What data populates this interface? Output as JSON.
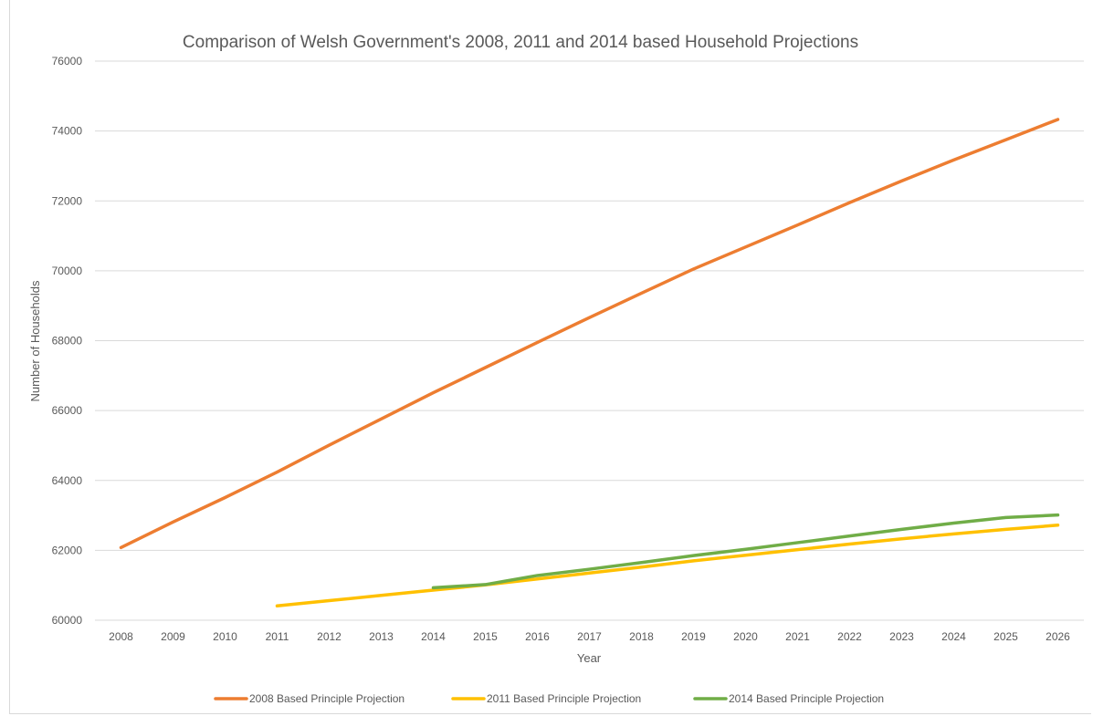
{
  "chart_data": {
    "type": "line",
    "title": "Comparison of Welsh Government's 2008, 2011 and 2014 based Household Projections",
    "xlabel": "Year",
    "ylabel": "Number of Households",
    "x": [
      "2008",
      "2009",
      "2010",
      "2011",
      "2012",
      "2013",
      "2014",
      "2015",
      "2016",
      "2017",
      "2018",
      "2019",
      "2020",
      "2021",
      "2022",
      "2023",
      "2024",
      "2025",
      "2026"
    ],
    "ylim": [
      60000,
      76000
    ],
    "yticks": [
      "60000",
      "62000",
      "64000",
      "66000",
      "68000",
      "70000",
      "72000",
      "74000",
      "76000"
    ],
    "grid": true,
    "legend_position": "bottom",
    "series": [
      {
        "name": "2008 Based Principle Projection",
        "color": "#ED7D31",
        "values": [
          62080,
          62810,
          63510,
          64240,
          65010,
          65760,
          66510,
          67230,
          67950,
          68660,
          69360,
          70050,
          70680,
          71310,
          71950,
          72570,
          73170,
          73750,
          74330
        ]
      },
      {
        "name": "2011 Based Principle Projection",
        "color": "#FFC000",
        "values": [
          null,
          null,
          null,
          60410,
          60560,
          60710,
          60860,
          61010,
          61180,
          61350,
          61520,
          61700,
          61860,
          62020,
          62180,
          62330,
          62470,
          62600,
          62720
        ]
      },
      {
        "name": "2014 Based Principle Projection",
        "color": "#70AD47",
        "values": [
          null,
          null,
          null,
          null,
          null,
          null,
          60930,
          61020,
          61280,
          61460,
          61650,
          61850,
          62030,
          62220,
          62410,
          62600,
          62780,
          62940,
          63010
        ]
      }
    ]
  }
}
